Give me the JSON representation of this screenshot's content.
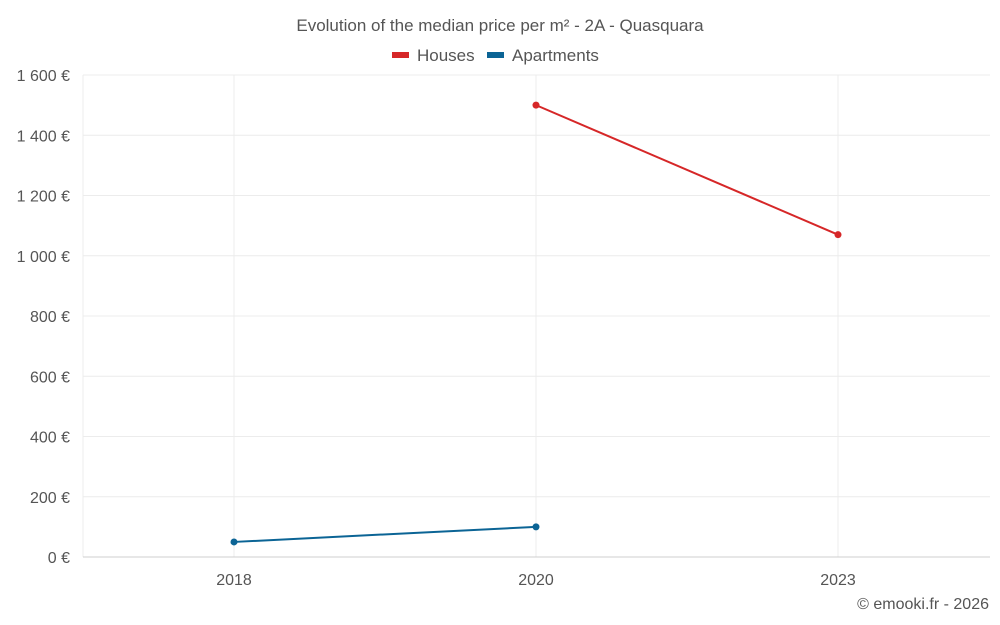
{
  "chart_data": {
    "type": "line",
    "title": "Evolution of the median price per m² - 2A - Quasquara",
    "categories": [
      "2018",
      "2020",
      "2023"
    ],
    "series": [
      {
        "name": "Houses",
        "color": "#d62728",
        "values": [
          null,
          1500,
          1070
        ]
      },
      {
        "name": "Apartments",
        "color": "#0b6495",
        "values": [
          50,
          100,
          null
        ]
      }
    ],
    "ylim": [
      0,
      1600
    ],
    "yticks": [
      0,
      200,
      400,
      600,
      800,
      1000,
      1200,
      1400,
      1600
    ],
    "ytick_labels": [
      "0 €",
      "200 €",
      "400 €",
      "600 €",
      "800 €",
      "1 000 €",
      "1 200 €",
      "1 400 €",
      "1 600 €"
    ],
    "xlabel": "",
    "ylabel": "",
    "grid": true,
    "legend_position": "top-center"
  },
  "credit": "© emooki.fr - 2026"
}
